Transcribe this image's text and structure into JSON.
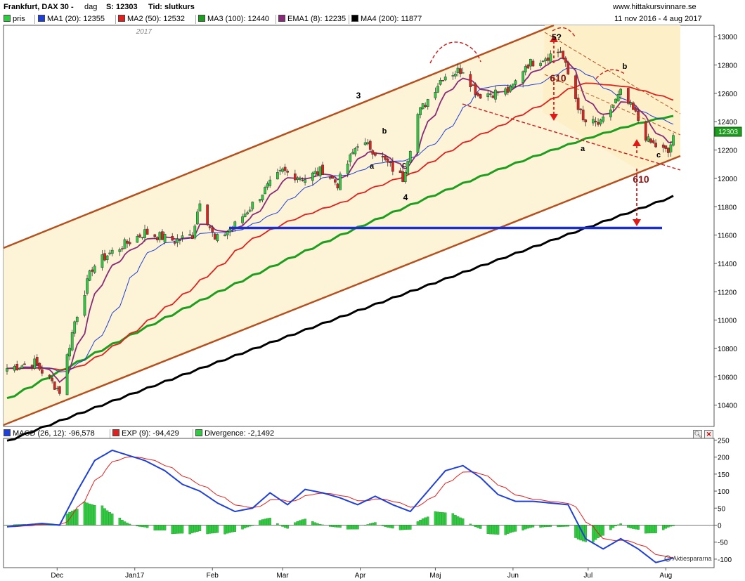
{
  "header": {
    "title": "Frankfurt, DAX 30 -",
    "period": "dag",
    "last_label": "S: 12303",
    "type_label": "Tid: slutkurs",
    "site": "www.hittakursvinnare.se",
    "range": "11 nov 2016 - 4 aug 2017"
  },
  "legend": [
    {
      "label": "pris",
      "color": "#2ecc40"
    },
    {
      "label": "MA1 (20): 12355",
      "color": "#1f3fd9"
    },
    {
      "label": "MA2 (50): 12532",
      "color": "#e0201e"
    },
    {
      "label": "MA3 (100): 12440",
      "color": "#1e9e1e"
    },
    {
      "label": "EMA1 (8): 12235",
      "color": "#8b2a7a"
    },
    {
      "label": "MA4 (200): 11877",
      "color": "#000000"
    }
  ],
  "indicator_legend": [
    {
      "label": "MACD (26, 12): -96,578",
      "color": "#1f3fd9"
    },
    {
      "label": "EXP (9): -94,429",
      "color": "#e0201e"
    },
    {
      "label": "Divergence: -2,1492",
      "color": "#2ecc40"
    }
  ],
  "year_label": "2017",
  "last_price_tag": "12303",
  "watermark": "Aktiespararna",
  "chart_data": [
    {
      "type": "candlestick",
      "title": "Frankfurt, DAX 30",
      "xlabel": "",
      "ylabel": "",
      "x_ticks": [
        "Dec",
        "Jan17",
        "Feb",
        "Mar",
        "Apr",
        "Maj",
        "Jun",
        "Jul",
        "Aug"
      ],
      "ylim": [
        10250,
        13080
      ],
      "y_ticks": [
        10400,
        10600,
        10800,
        11000,
        11200,
        11400,
        11600,
        11800,
        12000,
        12200,
        12400,
        12600,
        12800,
        13000
      ],
      "grid": false,
      "close_key_points": [
        {
          "x": "2016-11-11",
          "y": 10660
        },
        {
          "x": "2016-11-22",
          "y": 10700
        },
        {
          "x": "2016-12-02",
          "y": 10500
        },
        {
          "x": "2016-12-08",
          "y": 10990
        },
        {
          "x": "2016-12-15",
          "y": 11370
        },
        {
          "x": "2016-12-21",
          "y": 11460
        },
        {
          "x": "2017-01-05",
          "y": 11620
        },
        {
          "x": "2017-01-17",
          "y": 11560
        },
        {
          "x": "2017-01-24",
          "y": 11600
        },
        {
          "x": "2017-01-27",
          "y": 11850
        },
        {
          "x": "2017-02-02",
          "y": 11560
        },
        {
          "x": "2017-02-10",
          "y": 11670
        },
        {
          "x": "2017-02-21",
          "y": 11900
        },
        {
          "x": "2017-03-01",
          "y": 12050
        },
        {
          "x": "2017-03-10",
          "y": 12000
        },
        {
          "x": "2017-03-17",
          "y": 12060
        },
        {
          "x": "2017-03-23",
          "y": 11960
        },
        {
          "x": "2017-03-31",
          "y": 12250
        },
        {
          "x": "2017-04-05",
          "y": 12220
        },
        {
          "x": "2017-04-18",
          "y": 12000
        },
        {
          "x": "2017-04-24",
          "y": 12450
        },
        {
          "x": "2017-05-04",
          "y": 12720
        },
        {
          "x": "2017-05-12",
          "y": 12770
        },
        {
          "x": "2017-05-18",
          "y": 12590
        },
        {
          "x": "2017-05-31",
          "y": 12620
        },
        {
          "x": "2017-06-06",
          "y": 12800
        },
        {
          "x": "2017-06-20",
          "y": 12900
        },
        {
          "x": "2017-06-29",
          "y": 12400
        },
        {
          "x": "2017-07-06",
          "y": 12380
        },
        {
          "x": "2017-07-14",
          "y": 12600
        },
        {
          "x": "2017-07-20",
          "y": 12450
        },
        {
          "x": "2017-07-25",
          "y": 12260
        },
        {
          "x": "2017-08-02",
          "y": 12180
        },
        {
          "x": "2017-08-04",
          "y": 12303
        }
      ],
      "series": [
        {
          "name": "MA1 (20)",
          "last": 12355
        },
        {
          "name": "MA2 (50)",
          "last": 12532
        },
        {
          "name": "MA3 (100)",
          "last": 12440
        },
        {
          "name": "EMA1 (8)",
          "last": 12235
        },
        {
          "name": "MA4 (200)",
          "last": 11877
        }
      ],
      "horizontal_line": 11650,
      "annotations": [
        "3",
        "a",
        "b",
        "c",
        "4",
        "5?",
        "610",
        "a",
        "b",
        "c",
        "610"
      ]
    },
    {
      "type": "bar+line",
      "title": "MACD",
      "xlabel": "",
      "ylabel": "",
      "ylim": [
        -125,
        255
      ],
      "y_ticks": [
        250,
        200,
        150,
        100,
        50,
        0,
        -50,
        -100
      ],
      "series": [
        {
          "name": "MACD (26, 12)",
          "last": -96.578
        },
        {
          "name": "EXP (9)",
          "last": -94.429
        },
        {
          "name": "Divergence",
          "last": -2.1492
        }
      ]
    }
  ]
}
